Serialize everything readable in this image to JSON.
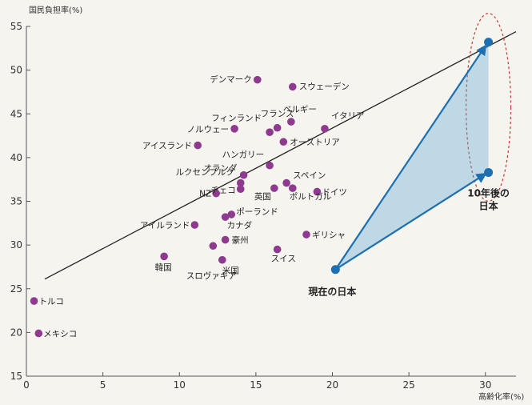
{
  "chart_data": {
    "type": "scatter",
    "ylabel": "国民負担率(%)",
    "xlabel": "高齢化率(%)",
    "xlim": [
      0,
      32
    ],
    "ylim": [
      15,
      55
    ],
    "xticks": [
      0,
      5,
      10,
      15,
      20,
      25,
      30
    ],
    "yticks": [
      15,
      20,
      25,
      30,
      35,
      40,
      45,
      50,
      55
    ],
    "grid": false,
    "point_color": "#8e3a8e",
    "highlight_color": "#1c6fb0",
    "arrow_color": "#5aa2d6",
    "ellipse_color": "#c0392b",
    "points": [
      {
        "label": "デンマーク",
        "x": 15.1,
        "y": 48.9
      },
      {
        "label": "フランス",
        "x": 16.4,
        "y": 43.4
      },
      {
        "label": "スウェーデン",
        "x": 17.4,
        "y": 48.1
      },
      {
        "label": "フィンランド",
        "x": 15.9,
        "y": 42.9
      },
      {
        "label": "ベルギー",
        "x": 17.3,
        "y": 44.1
      },
      {
        "label": "ノルウェー",
        "x": 13.6,
        "y": 43.3
      },
      {
        "label": "イタリア",
        "x": 19.5,
        "y": 43.3
      },
      {
        "label": "オーストリア",
        "x": 16.8,
        "y": 41.8
      },
      {
        "label": "アイスランド",
        "x": 11.2,
        "y": 41.4
      },
      {
        "label": "ハンガリー",
        "x": 15.9,
        "y": 39.1
      },
      {
        "label": "オランダ",
        "x": 14.2,
        "y": 38.0
      },
      {
        "label": "ルクセンブルク",
        "x": 14.0,
        "y": 37.1
      },
      {
        "label": "スペイン",
        "x": 17.0,
        "y": 37.1
      },
      {
        "label": "チェコ",
        "x": 14.0,
        "y": 36.4
      },
      {
        "label": "NZ",
        "x": 12.4,
        "y": 35.9
      },
      {
        "label": "英国",
        "x": 16.2,
        "y": 36.5
      },
      {
        "label": "ポルトガル",
        "x": 17.4,
        "y": 36.5
      },
      {
        "label": "ドイツ",
        "x": 19.0,
        "y": 36.1
      },
      {
        "label": "ポーランド",
        "x": 13.4,
        "y": 33.5
      },
      {
        "label": "カナダ",
        "x": 13.0,
        "y": 33.2
      },
      {
        "label": "アイルランド",
        "x": 11.0,
        "y": 32.3
      },
      {
        "label": "ギリシャ",
        "x": 18.3,
        "y": 31.2
      },
      {
        "label": "豪州",
        "x": 13.0,
        "y": 30.6
      },
      {
        "label": "スロヴァキア",
        "x": 12.2,
        "y": 29.9
      },
      {
        "label": "スイス",
        "x": 16.4,
        "y": 29.5
      },
      {
        "label": "韓国",
        "x": 9.0,
        "y": 28.7
      },
      {
        "label": "米国",
        "x": 12.8,
        "y": 28.3
      },
      {
        "label": "トルコ",
        "x": 0.5,
        "y": 23.6
      },
      {
        "label": "メキシコ",
        "x": 0.8,
        "y": 19.9
      }
    ],
    "japan_now": {
      "label": "現在の日本",
      "x": 20.2,
      "y": 27.2
    },
    "japan_future": [
      {
        "x": 30.2,
        "y": 53.2
      },
      {
        "x": 30.2,
        "y": 38.3
      }
    ],
    "japan_future_label": "10年後の日本",
    "trend_line": {
      "x": [
        1.2,
        32.0
      ],
      "y": [
        26.1,
        54.4
      ]
    }
  }
}
